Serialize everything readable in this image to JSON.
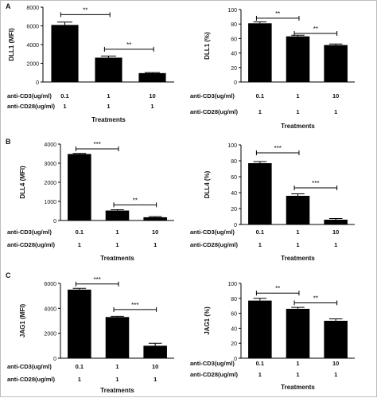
{
  "figure": {
    "panel_labels": [
      "A",
      "B",
      "C"
    ],
    "row_labels": {
      "cd3": "anti-CD3(ug/ml)",
      "cd28": "anti-CD28(ug/ml)"
    },
    "treatments_label": "Treatments",
    "significance": [
      "**",
      "**",
      "**",
      "**",
      "***",
      "**",
      "***",
      "***",
      "***",
      "***",
      "**",
      "**"
    ]
  },
  "chart_data": [
    {
      "id": "A-MFI",
      "panel": "A",
      "type": "bar",
      "categories": [
        "0.1",
        "1",
        "10"
      ],
      "cd3": [
        "0.1",
        "1",
        "10"
      ],
      "cd28": [
        "1",
        "1",
        "1"
      ],
      "values": [
        6100,
        2600,
        950
      ],
      "errors": [
        300,
        180,
        60
      ],
      "ylabel": "DLL1 (MFI)",
      "xlabel": "Treatments",
      "ylim": [
        0,
        8000
      ],
      "ticks": [
        0,
        2000,
        4000,
        6000,
        8000
      ],
      "tick_labels": [
        "0",
        "2000",
        "4000",
        "6000",
        "8000"
      ],
      "bar_color": "#000000",
      "comparisons": [
        {
          "from": 0,
          "to": 1,
          "y": 7200,
          "label": "**"
        },
        {
          "from": 1,
          "to": 2,
          "y": 3500,
          "label": "**"
        }
      ]
    },
    {
      "id": "A-pct",
      "panel": "A",
      "type": "bar",
      "categories": [
        "0.1",
        "1",
        "10"
      ],
      "cd3": [
        "0.1",
        "1",
        "10"
      ],
      "cd28": [
        "1",
        "1",
        "1"
      ],
      "values": [
        81,
        63,
        51
      ],
      "errors": [
        2,
        1.5,
        1.5
      ],
      "ylabel": "DLL1 (%)",
      "xlabel": "Treatments",
      "ylim": [
        0,
        100
      ],
      "ticks": [
        0,
        20,
        40,
        60,
        80,
        100
      ],
      "tick_labels": [
        "0",
        "20",
        "40",
        "60",
        "80",
        "100"
      ],
      "bar_color": "#000000",
      "comparisons": [
        {
          "from": 0,
          "to": 1,
          "y": 88,
          "label": "**"
        },
        {
          "from": 1,
          "to": 2,
          "y": 67,
          "label": "**"
        }
      ]
    },
    {
      "id": "B-MFI",
      "panel": "B",
      "type": "bar",
      "categories": [
        "0.1",
        "1",
        "10"
      ],
      "cd3": [
        "0.1",
        "1",
        "10"
      ],
      "cd28": [
        "1",
        "1",
        "1"
      ],
      "values": [
        3480,
        520,
        170
      ],
      "errors": [
        30,
        40,
        35
      ],
      "ylabel": "DLL4 (MFI)",
      "xlabel": "Treatments",
      "ylim": [
        0,
        4000
      ],
      "ticks": [
        0,
        1000,
        2000,
        3000,
        4000
      ],
      "tick_labels": [
        "0",
        "1000",
        "2000",
        "3000",
        "4000"
      ],
      "bar_color": "#000000",
      "comparisons": [
        {
          "from": 0,
          "to": 1,
          "y": 3750,
          "label": "***"
        },
        {
          "from": 1,
          "to": 2,
          "y": 820,
          "label": "**"
        }
      ]
    },
    {
      "id": "B-pct",
      "panel": "B",
      "type": "bar",
      "categories": [
        "0.1",
        "1",
        "10"
      ],
      "cd3": [
        "0.1",
        "1",
        "10"
      ],
      "cd28": [
        "1",
        "1",
        "1"
      ],
      "values": [
        77,
        36,
        6
      ],
      "errors": [
        2,
        2.5,
        1.5
      ],
      "ylabel": "DLL4 (%)",
      "xlabel": "Treatments",
      "ylim": [
        0,
        100
      ],
      "ticks": [
        0,
        20,
        40,
        60,
        80,
        100
      ],
      "tick_labels": [
        "0",
        "20",
        "40",
        "60",
        "80",
        "100"
      ],
      "bar_color": "#000000",
      "comparisons": [
        {
          "from": 0,
          "to": 1,
          "y": 90,
          "label": "***"
        },
        {
          "from": 1,
          "to": 2,
          "y": 46,
          "label": "***"
        }
      ]
    },
    {
      "id": "C-MFI",
      "panel": "C",
      "type": "bar",
      "categories": [
        "0.1",
        "1",
        "10"
      ],
      "cd3": [
        "0.1",
        "1",
        "10"
      ],
      "cd28": [
        "1",
        "1",
        "1"
      ],
      "values": [
        5500,
        3300,
        1000
      ],
      "errors": [
        100,
        60,
        200
      ],
      "ylabel": "JAG1 (MFI)",
      "xlabel": "Treatments",
      "ylim": [
        0,
        6000
      ],
      "ticks": [
        0,
        2000,
        4000,
        6000
      ],
      "tick_labels": [
        "0",
        "2000",
        "4000",
        "6000"
      ],
      "bar_color": "#000000",
      "comparisons": [
        {
          "from": 0,
          "to": 1,
          "y": 5950,
          "label": "***"
        },
        {
          "from": 1,
          "to": 2,
          "y": 3900,
          "label": "***"
        }
      ]
    },
    {
      "id": "C-pct",
      "panel": "C",
      "type": "bar",
      "categories": [
        "0.1",
        "1",
        "10"
      ],
      "cd3": [
        "0.1",
        "1",
        "10"
      ],
      "cd28": [
        "1",
        "1",
        "1"
      ],
      "values": [
        77,
        66,
        50
      ],
      "errors": [
        3,
        2,
        2.5
      ],
      "ylabel": "JAG1 (%)",
      "xlabel": "Treatments",
      "ylim": [
        0,
        100
      ],
      "ticks": [
        0,
        20,
        40,
        60,
        80,
        100
      ],
      "tick_labels": [
        "0",
        "20",
        "40",
        "60",
        "80",
        "100"
      ],
      "bar_color": "#000000",
      "comparisons": [
        {
          "from": 0,
          "to": 1,
          "y": 87,
          "label": "**"
        },
        {
          "from": 1,
          "to": 2,
          "y": 74,
          "label": "**"
        }
      ]
    }
  ]
}
